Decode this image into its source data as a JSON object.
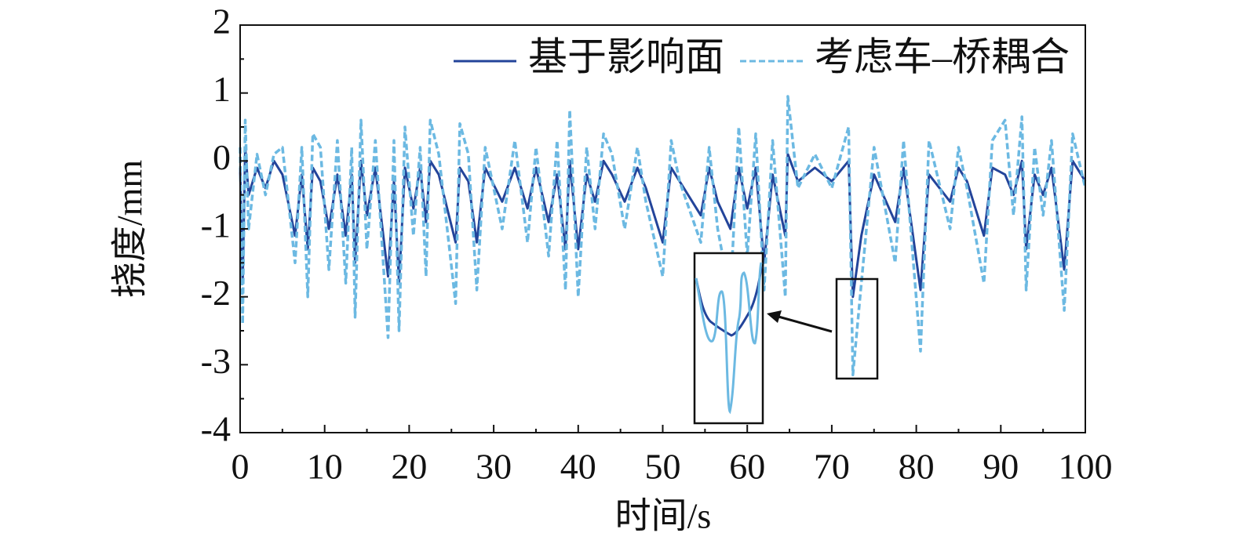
{
  "chart_data": {
    "type": "line",
    "xlabel": "时间/s",
    "ylabel": "挠度/mm",
    "xlim": [
      0,
      100
    ],
    "xticks": [
      0,
      10,
      20,
      30,
      40,
      50,
      60,
      70,
      80,
      90,
      100
    ],
    "ylim": [
      -4,
      2
    ],
    "yticks": [
      -4,
      -3,
      -2,
      -1,
      0,
      1,
      2
    ],
    "legend": "upper right",
    "x": [
      0,
      0.3,
      0.6,
      1,
      2,
      3,
      4,
      5,
      6.5,
      7.3,
      8,
      8.6,
      9.5,
      10.5,
      11.5,
      12.5,
      13.2,
      13.6,
      14.3,
      15,
      16,
      17.5,
      18.2,
      18.8,
      19.5,
      20.5,
      21.3,
      22,
      22.5,
      23.5,
      25.5,
      26,
      27,
      28,
      29,
      31,
      32.5,
      34,
      35,
      36.5,
      37.5,
      38.5,
      39,
      40,
      41,
      42,
      43,
      44,
      45.5,
      47,
      48,
      50,
      51,
      52,
      54.5,
      55.5,
      56.5,
      58,
      59,
      60,
      61,
      62,
      63,
      64.5,
      64.8,
      66,
      68,
      70,
      72,
      72.5,
      73.5,
      75,
      77.5,
      78.5,
      80.5,
      81.5,
      84,
      85,
      86,
      88,
      89,
      90.5,
      91.5,
      92.5,
      93,
      94,
      95,
      96,
      97.5,
      98.5,
      100
    ],
    "series": [
      {
        "name": "基于影响面",
        "color": "#23449a",
        "linestyle": "solid",
        "values": [
          -0.1,
          -1.8,
          0.2,
          -0.5,
          -0.1,
          -0.4,
          0,
          -0.2,
          -1.1,
          -0.2,
          -1.3,
          -0.1,
          -0.3,
          -1.0,
          -0.2,
          -1.1,
          -0.2,
          -1.5,
          0,
          -0.8,
          -0.1,
          -1.7,
          -0.3,
          -1.8,
          -0.1,
          -0.7,
          -0.1,
          -0.9,
          0,
          -0.2,
          -1.2,
          -0.1,
          -0.3,
          -1.2,
          -0.1,
          -0.6,
          -0.1,
          -0.7,
          -0.1,
          -0.9,
          -0.2,
          -1.3,
          0,
          -1.3,
          -0.2,
          -0.6,
          0,
          -0.2,
          -0.6,
          -0.1,
          -0.4,
          -1.2,
          -0.1,
          -0.3,
          -0.8,
          -0.1,
          -0.6,
          -1.0,
          -0.1,
          -0.7,
          -0.1,
          -1.5,
          -0.2,
          -1.1,
          0.1,
          -0.3,
          -0.1,
          -0.3,
          0,
          -2.0,
          -1.1,
          -0.2,
          -0.9,
          -0.1,
          -1.9,
          -0.2,
          -0.6,
          -0.1,
          -0.3,
          -1.1,
          -0.1,
          -0.2,
          -0.5,
          0,
          -1.3,
          -0.2,
          -0.5,
          -0.1,
          -1.6,
          0,
          -0.3
        ]
      },
      {
        "name": "考虑车–桥耦合",
        "color": "#6cb9e2",
        "linestyle": "dashed",
        "values": [
          0.2,
          -2.4,
          0.6,
          -1.0,
          0.1,
          -0.5,
          0.1,
          0.2,
          -1.5,
          0.2,
          -2.0,
          0.4,
          0.2,
          -1.6,
          0.3,
          -1.8,
          0.2,
          -2.3,
          0.6,
          -1.3,
          0.3,
          -2.6,
          0.3,
          -2.5,
          0.5,
          -1.1,
          0.2,
          -1.7,
          0.6,
          0.1,
          -2.1,
          0.55,
          0.1,
          -1.9,
          0.2,
          -1.0,
          0.3,
          -1.2,
          0.2,
          -1.4,
          0.3,
          -1.9,
          0.75,
          -2.0,
          0.2,
          -1.0,
          0.4,
          0.1,
          -1.0,
          0.2,
          -0.6,
          -1.7,
          0.3,
          -0.3,
          -1.2,
          0.2,
          -1.0,
          -2.0,
          0.5,
          -1.4,
          0.4,
          -1.9,
          0.3,
          -2.0,
          0.95,
          -0.4,
          0.1,
          -0.4,
          0.5,
          -3.15,
          -1.8,
          0.2,
          -1.5,
          0.3,
          -2.8,
          0.3,
          -1.0,
          0.2,
          -0.4,
          -1.8,
          0.3,
          0.6,
          -0.8,
          0.65,
          -1.9,
          0.2,
          -0.8,
          0.3,
          -2.2,
          0.4,
          -0.4
        ]
      }
    ]
  }
}
